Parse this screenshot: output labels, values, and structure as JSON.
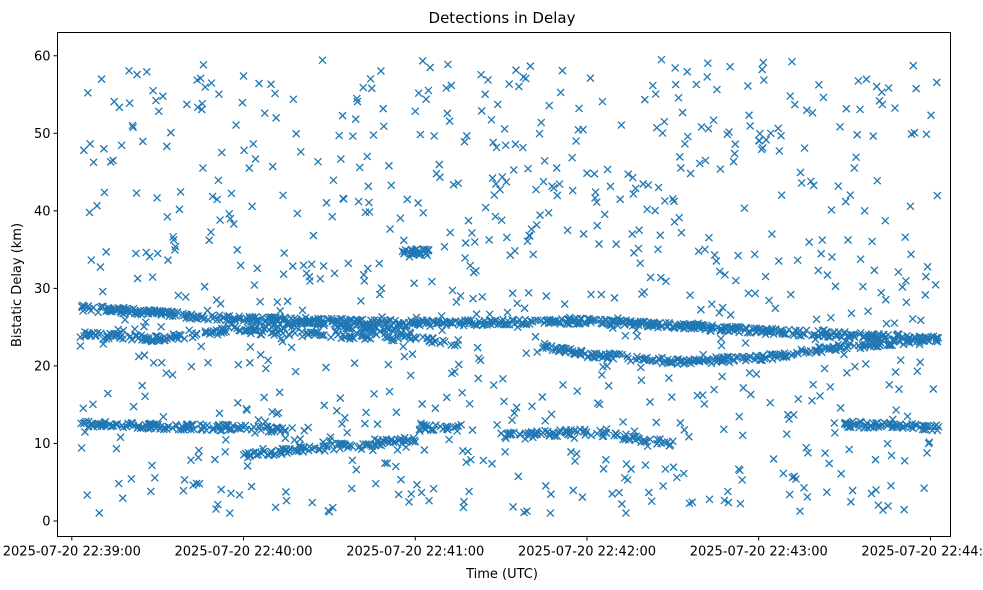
{
  "chart_data": {
    "type": "scatter",
    "title": "Detections in Delay",
    "xlabel": "Time (UTC)",
    "ylabel": "Bistatic Delay (km)",
    "xlim": [
      "2025-07-20 22:38:55",
      "2025-07-20 22:44:07"
    ],
    "ylim": [
      -2.0,
      63.0
    ],
    "grid": false,
    "marker": "x",
    "color": "#1f77b4",
    "xticks": [
      "2025-07-20 22:39:00",
      "2025-07-20 22:40:00",
      "2025-07-20 22:41:00",
      "2025-07-20 22:42:00",
      "2025-07-20 22:43:00",
      "2025-07-20 22:44:00"
    ],
    "xtick_labels": [
      "2025-07-20 22:39:00",
      "2025-07-20 22:40:00",
      "2025-07-20 22:41:00",
      "2025-07-20 22:42:00",
      "2025-07-20 22:43:00",
      "2025-07-20 22:44:00"
    ],
    "yticks": [
      0,
      10,
      20,
      30,
      40,
      50,
      60
    ],
    "ytick_labels": [
      "0",
      "10",
      "20",
      "30",
      "40",
      "50",
      "60"
    ],
    "series": [
      {
        "start_time": "2025-07-20 22:39:03",
        "end_time": "2025-07-20 22:44:03",
        "points_per_second": 5,
        "tracks": [
          {
            "times": [
              "2025-07-20 22:39:03",
              "2025-07-20 22:40:00",
              "2025-07-20 22:41:00",
              "2025-07-20 22:42:00",
              "2025-07-20 22:43:00",
              "2025-07-20 22:44:03"
            ],
            "delay": [
              27.5,
              26.0,
              25.5,
              25.8,
              24.5,
              23.5
            ],
            "density": 0.45
          },
          {
            "times": [
              "2025-07-20 22:39:03",
              "2025-07-20 22:39:30",
              "2025-07-20 22:40:00",
              "2025-07-20 22:40:30",
              "2025-07-20 22:41:00"
            ],
            "delay": [
              24.0,
              23.5,
              24.8,
              25.5,
              24.0
            ],
            "density": 0.35
          },
          {
            "times": [
              "2025-07-20 22:40:00",
              "2025-07-20 22:40:30",
              "2025-07-20 22:41:00",
              "2025-07-20 22:41:15"
            ],
            "delay": [
              24.5,
              24.0,
              23.5,
              23.0
            ],
            "density": 0.25
          },
          {
            "times": [
              "2025-07-20 22:41:45",
              "2025-07-20 22:42:00",
              "2025-07-20 22:42:30"
            ],
            "delay": [
              22.5,
              21.5,
              20.5
            ],
            "density": 0.35
          },
          {
            "times": [
              "2025-07-20 22:42:30",
              "2025-07-20 22:43:00",
              "2025-07-20 22:43:30",
              "2025-07-20 22:44:03"
            ],
            "delay": [
              20.5,
              21.0,
              22.5,
              23.5
            ],
            "density": 0.35
          },
          {
            "times": [
              "2025-07-20 22:39:03",
              "2025-07-20 22:39:30",
              "2025-07-20 22:40:00",
              "2025-07-20 22:40:15"
            ],
            "delay": [
              12.5,
              12.2,
              12.0,
              11.8
            ],
            "density": 0.35
          },
          {
            "times": [
              "2025-07-20 22:40:00",
              "2025-07-20 22:40:30",
              "2025-07-20 22:41:00"
            ],
            "delay": [
              8.5,
              9.5,
              10.5
            ],
            "density": 0.35
          },
          {
            "times": [
              "2025-07-20 22:41:00",
              "2025-07-20 22:41:15"
            ],
            "delay": [
              12.0,
              12.0
            ],
            "density": 0.3
          },
          {
            "times": [
              "2025-07-20 22:41:30",
              "2025-07-20 22:42:00",
              "2025-07-20 22:42:30"
            ],
            "delay": [
              11.0,
              11.5,
              10.0
            ],
            "density": 0.3
          },
          {
            "times": [
              "2025-07-20 22:43:30",
              "2025-07-20 22:44:03"
            ],
            "delay": [
              12.5,
              12.0
            ],
            "density": 0.4
          },
          {
            "times": [
              "2025-07-20 22:40:55",
              "2025-07-20 22:41:05"
            ],
            "delay": [
              34.8,
              34.6
            ],
            "density": 0.6
          }
        ],
        "clutter_density": 0.55,
        "clutter_range": [
          1.0,
          60.0
        ]
      }
    ]
  }
}
